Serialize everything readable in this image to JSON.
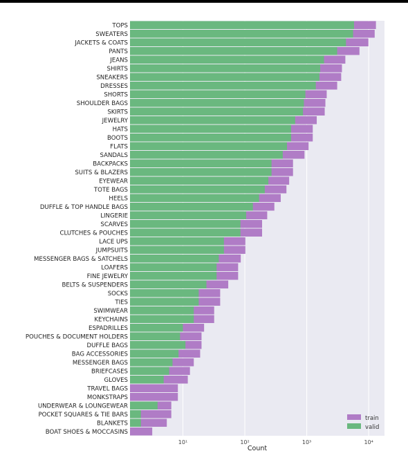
{
  "chart_data": {
    "type": "bar",
    "orientation": "horizontal",
    "stacking": "overlay",
    "xscale": "log",
    "xlabel": "Count",
    "ylabel": "",
    "xlim": [
      1.4,
      18000
    ],
    "xticks": [
      {
        "value": 10,
        "label": "10¹"
      },
      {
        "value": 100,
        "label": "10²"
      },
      {
        "value": 1000,
        "label": "10³"
      },
      {
        "value": 10000,
        "label": "10⁴"
      }
    ],
    "categories": [
      "TOPS",
      "SWEATERS",
      "JACKETS & COATS",
      "PANTS",
      "JEANS",
      "SHIRTS",
      "SNEAKERS",
      "DRESSES",
      "SHORTS",
      "SHOULDER BAGS",
      "SKIRTS",
      "JEWELRY",
      "HATS",
      "BOOTS",
      "FLATS",
      "SANDALS",
      "BACKPACKS",
      "SUITS & BLAZERS",
      "EYEWEAR",
      "TOTE BAGS",
      "HEELS",
      "DUFFLE & TOP HANDLE BAGS",
      "LINGERIE",
      "SCARVES",
      "CLUTCHES & POUCHES",
      "LACE UPS",
      "JUMPSUITS",
      "MESSENGER BAGS & SATCHELS",
      "LOAFERS",
      "FINE JEWELRY",
      "BELTS & SUSPENDERS",
      "SOCKS",
      "TIES",
      "SWIMWEAR",
      "KEYCHAINS",
      "ESPADRILLES",
      "POUCHES & DOCUMENT HOLDERS",
      "DUFFLE BAGS",
      "BAG ACCESSORIES",
      "MESSENGER BAGS",
      "BRIEFCASES",
      "GLOVES",
      "TRAVEL BAGS",
      "MONKSTRAPS",
      "UNDERWEAR & LOUNGEWEAR",
      "POCKET SQUARES & TIE BARS",
      "BLANKETS",
      "BOAT SHOES & MOCCASINS"
    ],
    "series": [
      {
        "name": "train",
        "color": "#b07cc6",
        "values": [
          13100,
          12500,
          9900,
          7100,
          4200,
          3700,
          3600,
          3100,
          2100,
          2000,
          1950,
          1450,
          1250,
          1250,
          1070,
          920,
          600,
          600,
          520,
          470,
          380,
          300,
          230,
          190,
          190,
          102,
          102,
          86,
          78,
          78,
          54,
          40,
          40,
          32,
          32,
          22,
          20,
          20,
          19,
          15,
          13,
          12,
          8.3,
          8.3,
          6.5,
          6.5,
          5.5,
          3.2
        ]
      },
      {
        "name": "valid",
        "color": "#6ab87f",
        "values": [
          5800,
          5600,
          4300,
          3100,
          1900,
          1650,
          1600,
          1400,
          950,
          900,
          870,
          650,
          560,
          560,
          480,
          410,
          270,
          270,
          240,
          210,
          170,
          135,
          105,
          85,
          85,
          46,
          46,
          38,
          35,
          35,
          24,
          18,
          18,
          15,
          15,
          10,
          9,
          11,
          8.5,
          6.8,
          6,
          4.9,
          0,
          0,
          3.9,
          2.1,
          2.1,
          0
        ]
      }
    ],
    "legend": {
      "position": "bottom-right",
      "entries": [
        "train",
        "valid"
      ]
    },
    "grid": true
  }
}
